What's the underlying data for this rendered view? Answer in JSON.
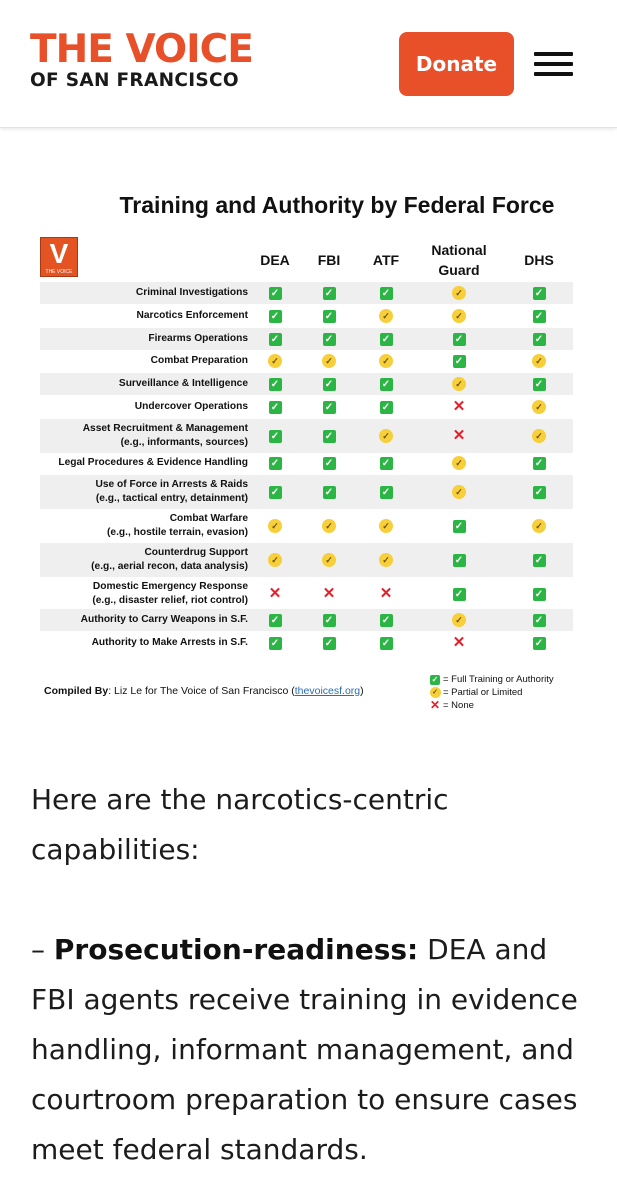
{
  "header": {
    "logo_main": "THE VOICE",
    "logo_sub": "OF SAN FRANCISCO",
    "donate_label": "Donate",
    "menu_icon": "hamburger-menu-icon",
    "accent_color": "#e8502a"
  },
  "figure": {
    "title": "Training and Authority by Federal Force",
    "logo_letter": "V",
    "logo_caption": "THE VOICE",
    "columns": [
      "DEA",
      "FBI",
      "ATF",
      "National Guard",
      "DHS"
    ],
    "rows": [
      {
        "label": [
          "Criminal Investigations"
        ],
        "values": [
          "full",
          "full",
          "full",
          "partial",
          "full"
        ]
      },
      {
        "label": [
          "Narcotics Enforcement"
        ],
        "values": [
          "full",
          "full",
          "partial",
          "partial",
          "full"
        ]
      },
      {
        "label": [
          "Firearms Operations"
        ],
        "values": [
          "full",
          "full",
          "full",
          "full",
          "full"
        ]
      },
      {
        "label": [
          "Combat Preparation"
        ],
        "values": [
          "partial",
          "partial",
          "partial",
          "full",
          "partial"
        ]
      },
      {
        "label": [
          "Surveillance & Intelligence"
        ],
        "values": [
          "full",
          "full",
          "full",
          "partial",
          "full"
        ]
      },
      {
        "label": [
          "Undercover Operations"
        ],
        "values": [
          "full",
          "full",
          "full",
          "none",
          "partial"
        ]
      },
      {
        "label": [
          "Asset Recruitment & Management",
          "(e.g., informants, sources)"
        ],
        "values": [
          "full",
          "full",
          "partial",
          "none",
          "partial"
        ]
      },
      {
        "label": [
          "Legal Procedures & Evidence Handling"
        ],
        "values": [
          "full",
          "full",
          "full",
          "partial",
          "full"
        ]
      },
      {
        "label": [
          "Use of Force in Arrests & Raids",
          "(e.g., tactical entry, detainment)"
        ],
        "values": [
          "full",
          "full",
          "full",
          "partial",
          "full"
        ]
      },
      {
        "label": [
          "Combat Warfare",
          "(e.g., hostile terrain, evasion)"
        ],
        "values": [
          "partial",
          "partial",
          "partial",
          "full",
          "partial"
        ]
      },
      {
        "label": [
          "Counterdrug Support",
          "(e.g., aerial recon, data analysis)"
        ],
        "values": [
          "partial",
          "partial",
          "partial",
          "full",
          "full"
        ]
      },
      {
        "label": [
          "Domestic Emergency Response",
          "(e.g., disaster relief, riot control)"
        ],
        "values": [
          "none",
          "none",
          "none",
          "full",
          "full"
        ]
      },
      {
        "label": [
          "Authority to Carry Weapons in S.F."
        ],
        "values": [
          "full",
          "full",
          "full",
          "partial",
          "full"
        ]
      },
      {
        "label": [
          "Authority to Make Arrests in S.F."
        ],
        "values": [
          "full",
          "full",
          "full",
          "none",
          "full"
        ]
      }
    ],
    "compiled_prefix": "Compiled By",
    "compiled_text": ": Liz Le for The Voice of San Francisco (",
    "compiled_link": "thevoicesf.org",
    "compiled_suffix": ")",
    "legend": [
      {
        "icon": "full",
        "text": "= Full Training or Authority"
      },
      {
        "icon": "partial",
        "text": "= Partial or Limited"
      },
      {
        "icon": "none",
        "text": "= None"
      }
    ],
    "status_colors": {
      "full": "#2bb544",
      "partial": "#f6cf3a",
      "none": "#e0212b"
    }
  },
  "article": {
    "intro": "Here are the narcotics-centric capabilities:",
    "bullet_dash": "– ",
    "bullet_title": "Prosecution-readiness:",
    "bullet_text": " DEA and FBI agents receive training in evidence handling, informant management, and courtroom preparation to ensure cases meet federal standards."
  }
}
